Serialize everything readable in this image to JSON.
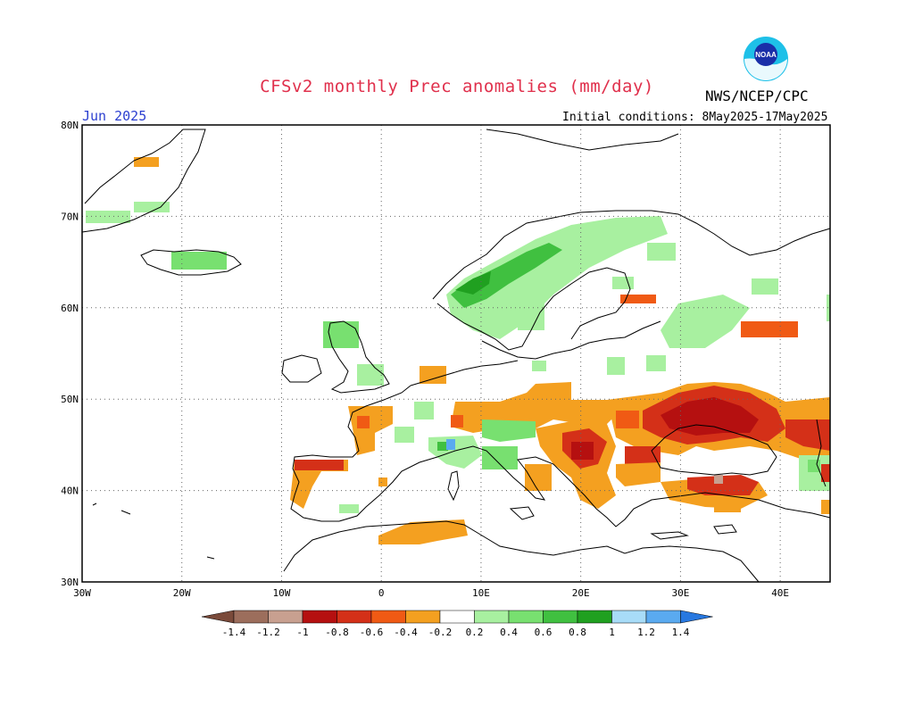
{
  "title": "CFSv2 monthly Prec anomalies (mm/day)",
  "agency": "NWS/NCEP/CPC",
  "logo_text": "NOAA",
  "month_label": "Jun 2025",
  "initial_conditions": "Initial conditions: 8May2025-17May2025",
  "map": {
    "region": "Europe",
    "lon_range": [
      -30,
      45
    ],
    "lat_range": [
      30,
      80
    ],
    "lat_ticks": [
      "30N",
      "40N",
      "50N",
      "60N",
      "70N",
      "80N"
    ],
    "lon_ticks": [
      "30W",
      "20W",
      "10W",
      "0",
      "10E",
      "20E",
      "30E",
      "40E"
    ],
    "grid": true
  },
  "colorbar": {
    "labels": [
      "-1.4",
      "-1.2",
      "-1",
      "-0.8",
      "-0.6",
      "-0.4",
      "-0.2",
      "0.2",
      "0.4",
      "0.6",
      "0.8",
      "1",
      "1.2",
      "1.4"
    ],
    "colors": [
      "#7a4a3a",
      "#9c6e5c",
      "#c8a090",
      "#b51010",
      "#d43018",
      "#f05a14",
      "#f4a020",
      "#ffffff",
      "#a8f0a0",
      "#78e070",
      "#40c040",
      "#20a020",
      "#a8dcf8",
      "#5aaaf0",
      "#2878e0"
    ]
  },
  "colors": {
    "title": "#e0304c",
    "month": "#2b3fd0"
  }
}
